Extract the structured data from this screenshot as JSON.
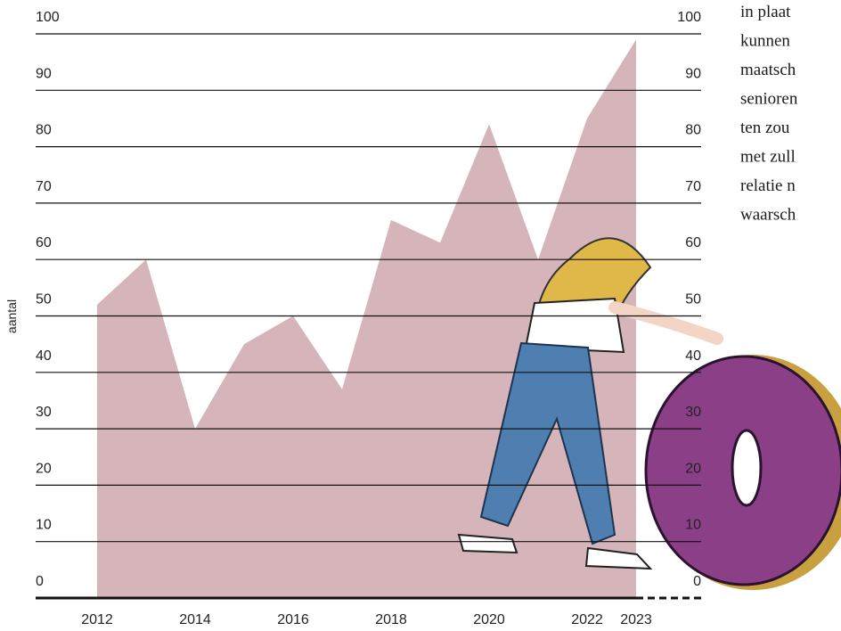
{
  "chart_data": {
    "type": "area",
    "y_label": "aantal",
    "x": [
      2012,
      2013,
      2014,
      2015,
      2016,
      2017,
      2018,
      2019,
      2020,
      2021,
      2022,
      2023
    ],
    "values": [
      52,
      60,
      30,
      45,
      50,
      37,
      67,
      63,
      84,
      60,
      85,
      99
    ],
    "color": "#d6b5ba",
    "xlim": [
      2012,
      2023
    ],
    "xticks": [
      2012,
      2014,
      2016,
      2018,
      2020,
      2022,
      2023
    ],
    "ylim": [
      0,
      100
    ],
    "yticks": [
      0,
      10,
      20,
      30,
      40,
      50,
      60,
      70,
      80,
      90,
      100
    ],
    "grid": true
  },
  "sidebar_text": [
    "in plaat",
    "kunnen",
    "maatsch",
    "senioren",
    "ten zou",
    "met zull",
    "relatie n",
    "waarsch"
  ]
}
